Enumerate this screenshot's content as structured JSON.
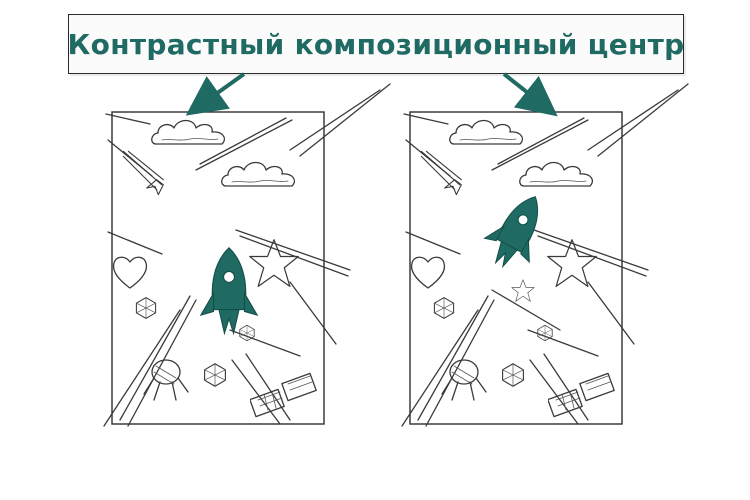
{
  "title": "Контрастный композиционный центр",
  "colors": {
    "accent": "#1f6a63",
    "sketch": "#3a3a3a",
    "background": "#ffffff"
  },
  "panels": [
    {
      "id": "left",
      "focal_object": "rocket-icon",
      "focal_position": "center"
    },
    {
      "id": "right",
      "focal_object": "rocket-icon",
      "focal_position": "upper-right"
    }
  ]
}
